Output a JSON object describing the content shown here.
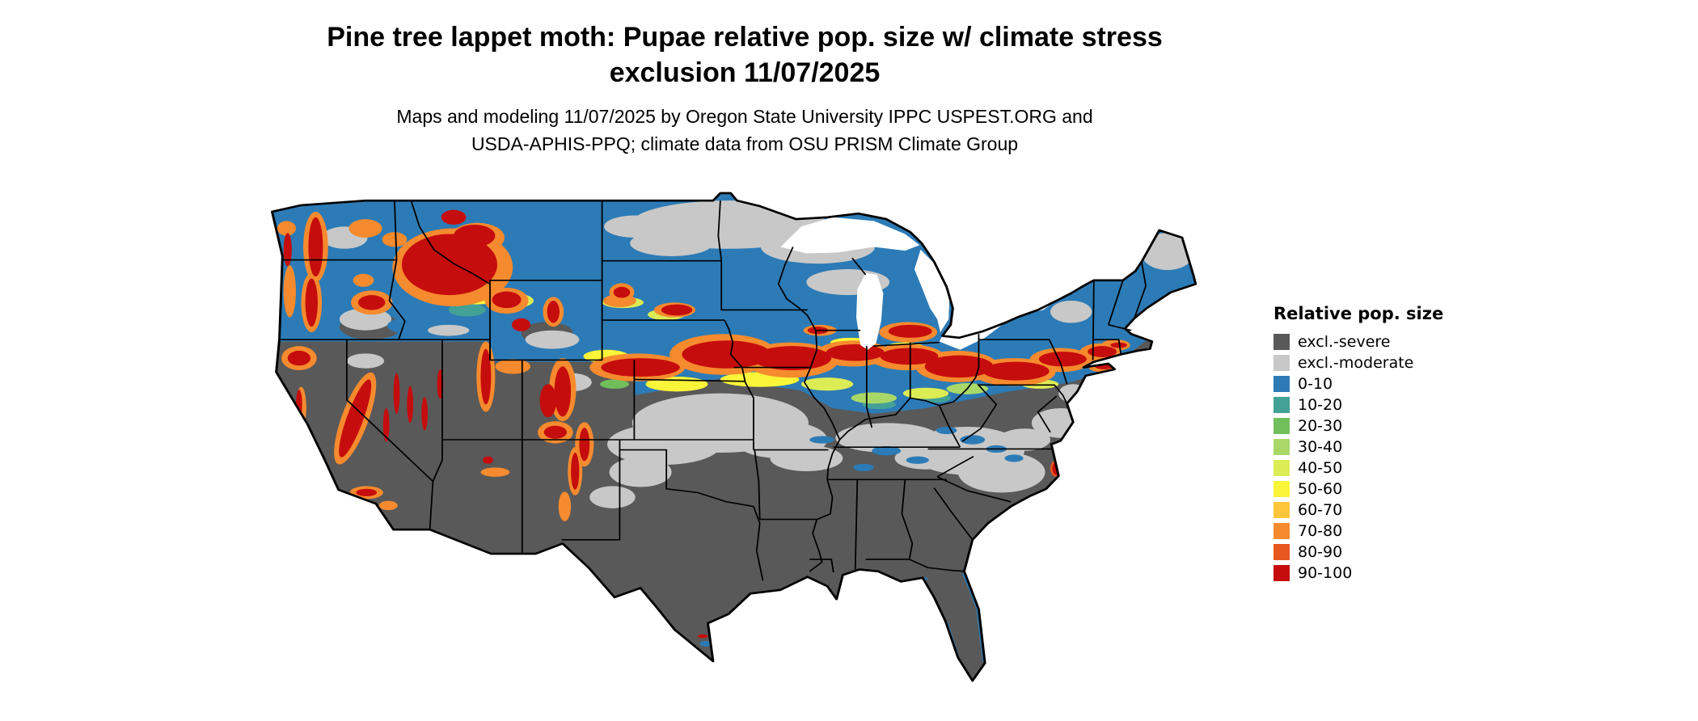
{
  "header": {
    "title_line1": "Pine tree lappet moth: Pupae relative pop. size w/ climate stress",
    "title_line2": "exclusion 11/07/2025",
    "subtitle_line1": "Maps and modeling 11/07/2025 by Oregon State University IPPC USPEST.ORG and",
    "subtitle_line2": "USDA-APHIS-PPQ; climate data from OSU PRISM Climate Group"
  },
  "map": {
    "region": "Continental United States",
    "kind": "raster pest risk map with state boundaries"
  },
  "legend": {
    "title": "Relative pop. size",
    "items": [
      {
        "label": "excl.-severe",
        "color": "#595959"
      },
      {
        "label": "excl.-moderate",
        "color": "#c8c8c8"
      },
      {
        "label": "0-10",
        "color": "#2c7bb6"
      },
      {
        "label": "10-20",
        "color": "#44a195"
      },
      {
        "label": "20-30",
        "color": "#71bf5b"
      },
      {
        "label": "30-40",
        "color": "#aad868"
      },
      {
        "label": "40-50",
        "color": "#dcec55"
      },
      {
        "label": "50-60",
        "color": "#faf539"
      },
      {
        "label": "60-70",
        "color": "#fcc53a"
      },
      {
        "label": "70-80",
        "color": "#f58a2e"
      },
      {
        "label": "80-90",
        "color": "#e8571e"
      },
      {
        "label": "90-100",
        "color": "#c60d0d"
      }
    ]
  }
}
